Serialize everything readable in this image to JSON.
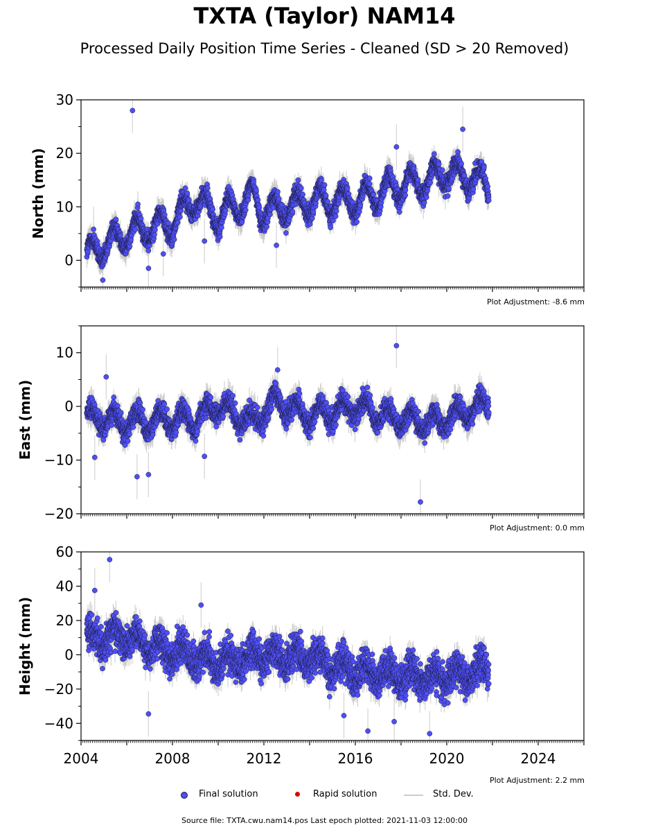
{
  "title": "TXTA (Taylor) NAM14",
  "subtitle": "Processed Daily Position Time Series - Cleaned (SD > 20 Removed)",
  "legend": {
    "final": "Final solution",
    "rapid": "Rapid solution",
    "stddev": "Std. Dev."
  },
  "footer": "Source file: TXTA.cwu.nam14.pos  Last epoch plotted: 2021-11-03 12:00:00",
  "colors": {
    "final_fill": "#4f4ff5",
    "final_edge": "#1a1a3a",
    "rapid": "#e00000",
    "stddev": "#c8c8c8"
  },
  "chart_data": [
    {
      "type": "scatter",
      "ylabel": "North (mm)",
      "adjustment": "Plot Adjustment: -8.6 mm",
      "xlim": [
        2004.0,
        2026.0
      ],
      "ylim": [
        -5,
        30
      ],
      "yticks": [
        0,
        10,
        20,
        30
      ],
      "xticks": [
        2004,
        2008,
        2012,
        2016,
        2020,
        2024
      ],
      "show_x_labels": false,
      "data_range": [
        2004.25,
        2021.84
      ],
      "trend": [
        [
          2004.3,
          1.0
        ],
        [
          2006.0,
          5.0
        ],
        [
          2008.0,
          7.0
        ],
        [
          2009.0,
          11.5
        ],
        [
          2010.0,
          8.0
        ],
        [
          2011.5,
          12.0
        ],
        [
          2012.0,
          9.0
        ],
        [
          2014.0,
          11.0
        ],
        [
          2016.0,
          11.0
        ],
        [
          2018.0,
          14.0
        ],
        [
          2019.0,
          14.5
        ],
        [
          2020.0,
          16.5
        ],
        [
          2021.8,
          14.5
        ]
      ],
      "amplitude": 2.5,
      "scatter": 1.2,
      "outliers": [
        [
          2006.25,
          28.0
        ],
        [
          2006.95,
          -1.5
        ],
        [
          2012.55,
          2.8
        ],
        [
          2009.4,
          3.6
        ],
        [
          2004.55,
          5.8
        ],
        [
          2004.95,
          -3.7
        ],
        [
          2007.6,
          1.2
        ],
        [
          2017.8,
          21.2
        ],
        [
          2020.7,
          24.5
        ]
      ]
    },
    {
      "type": "scatter",
      "ylabel": "East (mm)",
      "adjustment": "Plot Adjustment: 0.0 mm",
      "xlim": [
        2004.0,
        2026.0
      ],
      "ylim": [
        -20,
        15
      ],
      "yticks": [
        -20,
        -10,
        0,
        10
      ],
      "xticks": [
        2004,
        2008,
        2012,
        2016,
        2020,
        2024
      ],
      "show_x_labels": false,
      "data_range": [
        2004.25,
        2021.84
      ],
      "trend": [
        [
          2004.3,
          -2.0
        ],
        [
          2006.0,
          -3.0
        ],
        [
          2008.0,
          -2.5
        ],
        [
          2009.0,
          -2.5
        ],
        [
          2010.0,
          0.0
        ],
        [
          2011.5,
          -3.0
        ],
        [
          2012.5,
          1.0
        ],
        [
          2014.0,
          -2.0
        ],
        [
          2016.0,
          0.0
        ],
        [
          2017.5,
          -2.0
        ],
        [
          2019.5,
          -3.0
        ],
        [
          2021.8,
          0.5
        ]
      ],
      "amplitude": 1.8,
      "scatter": 1.4,
      "outliers": [
        [
          2004.6,
          -9.5
        ],
        [
          2006.45,
          -13.1
        ],
        [
          2006.95,
          -12.7
        ],
        [
          2005.1,
          5.5
        ],
        [
          2017.8,
          11.3
        ],
        [
          2018.85,
          -17.8
        ],
        [
          2009.4,
          -9.3
        ],
        [
          2012.6,
          6.8
        ]
      ]
    },
    {
      "type": "scatter",
      "ylabel": "Height (mm)",
      "adjustment": "Plot Adjustment: 2.2 mm",
      "xlim": [
        2004.0,
        2026.0
      ],
      "ylim": [
        -50,
        60
      ],
      "yticks": [
        -40,
        -20,
        0,
        20,
        40,
        60
      ],
      "xticks": [
        2004,
        2008,
        2012,
        2016,
        2020,
        2024
      ],
      "show_x_labels": true,
      "data_range": [
        2004.25,
        2021.84
      ],
      "trend": [
        [
          2004.3,
          10.0
        ],
        [
          2006.0,
          10.0
        ],
        [
          2008.0,
          2.0
        ],
        [
          2010.0,
          -5.0
        ],
        [
          2012.0,
          0.0
        ],
        [
          2014.0,
          -2.0
        ],
        [
          2016.0,
          -10.0
        ],
        [
          2018.0,
          -12.0
        ],
        [
          2020.0,
          -14.0
        ],
        [
          2021.8,
          -8.0
        ]
      ],
      "amplitude": 5.0,
      "scatter": 7.0,
      "outliers": [
        [
          2005.25,
          55.5
        ],
        [
          2004.6,
          37.5
        ],
        [
          2006.95,
          -34.5
        ],
        [
          2009.25,
          29.0
        ],
        [
          2016.55,
          -44.5
        ],
        [
          2019.25,
          -46.0
        ],
        [
          2015.5,
          -35.5
        ],
        [
          2017.7,
          -39.0
        ]
      ]
    }
  ]
}
